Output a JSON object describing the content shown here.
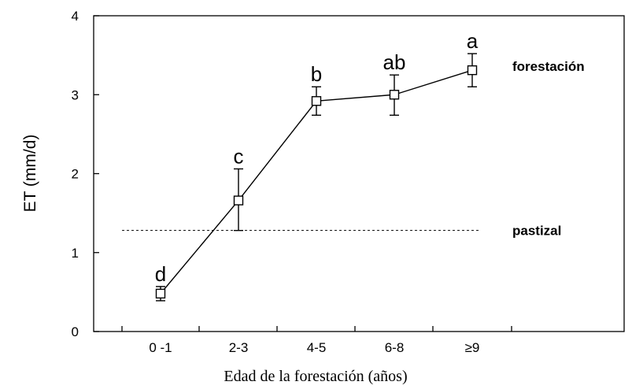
{
  "chart_data": {
    "type": "line",
    "title": "",
    "xlabel": "Edad de la forestación (años)",
    "ylabel": "ET (mm/d)",
    "ylim": [
      0,
      4
    ],
    "yticks": [
      "0",
      "1",
      "2",
      "3",
      "4"
    ],
    "categories": [
      "0 -1",
      "2-3",
      "4-5",
      "6-8",
      "≥9"
    ],
    "series": [
      {
        "name": "forestación",
        "values": [
          0.48,
          1.66,
          2.92,
          3.0,
          3.31
        ],
        "err_low": [
          0.39,
          1.28,
          2.74,
          2.74,
          3.1
        ],
        "err_high": [
          0.57,
          2.06,
          3.1,
          3.25,
          3.52
        ],
        "letters": [
          "d",
          "c",
          "b",
          "ab",
          "a"
        ]
      }
    ],
    "reference_line": {
      "label": "pastizal",
      "value": 1.28,
      "style": "dashed"
    },
    "grid": false,
    "legend": "none"
  }
}
